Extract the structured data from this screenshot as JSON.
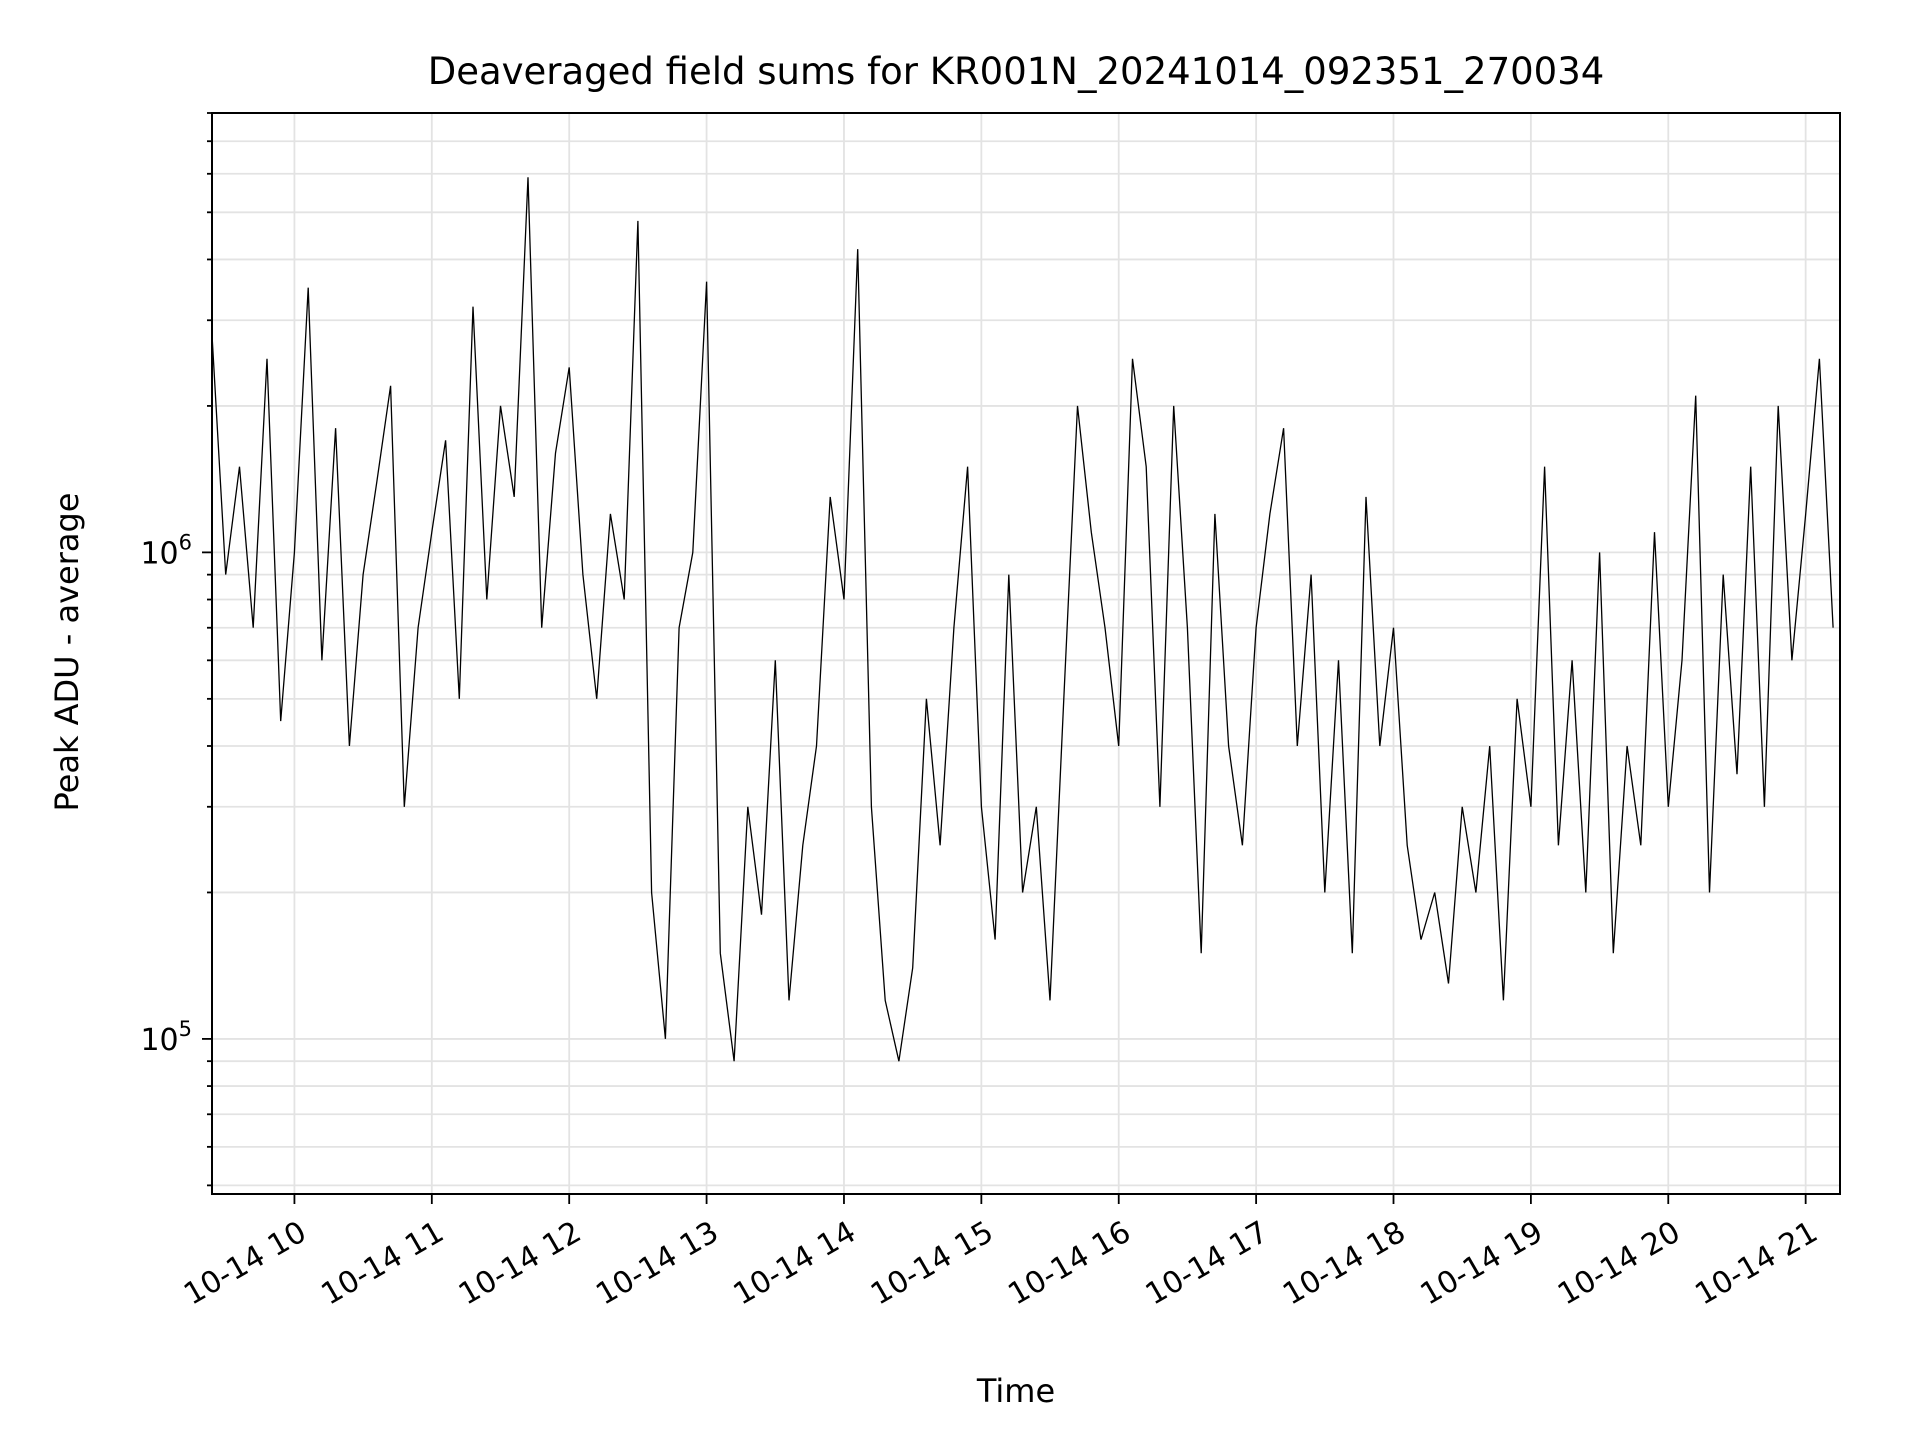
{
  "chart_data": {
    "type": "line",
    "title": "Deaveraged field sums for KR001N_20241014_092351_270034",
    "xlabel": "Time",
    "ylabel": "Peak ADU - average",
    "y_scale": "log",
    "ylim": [
      48000,
      8000000
    ],
    "xlim": [
      "2024-10-14 09:24",
      "2024-10-14 21:15"
    ],
    "grid": "on (major and minor)",
    "line_color": "#000000",
    "x_ticks": [
      {
        "value": "2024-10-14 10:00",
        "label": "10-14 10"
      },
      {
        "value": "2024-10-14 11:00",
        "label": "10-14 11"
      },
      {
        "value": "2024-10-14 12:00",
        "label": "10-14 12"
      },
      {
        "value": "2024-10-14 13:00",
        "label": "10-14 13"
      },
      {
        "value": "2024-10-14 14:00",
        "label": "10-14 14"
      },
      {
        "value": "2024-10-14 15:00",
        "label": "10-14 15"
      },
      {
        "value": "2024-10-14 16:00",
        "label": "10-14 16"
      },
      {
        "value": "2024-10-14 17:00",
        "label": "10-14 17"
      },
      {
        "value": "2024-10-14 18:00",
        "label": "10-14 18"
      },
      {
        "value": "2024-10-14 19:00",
        "label": "10-14 19"
      },
      {
        "value": "2024-10-14 20:00",
        "label": "10-14 20"
      },
      {
        "value": "2024-10-14 21:00",
        "label": "10-14 21"
      }
    ],
    "y_ticks": [
      {
        "value": 100000,
        "base": "10",
        "exp": "5"
      },
      {
        "value": 1000000,
        "base": "10",
        "exp": "6"
      }
    ],
    "series": [
      {
        "x": [
          "2024-10-14 09:24",
          "2024-10-14 09:30",
          "2024-10-14 09:36",
          "2024-10-14 09:42",
          "2024-10-14 09:48",
          "2024-10-14 09:54",
          "2024-10-14 10:00",
          "2024-10-14 10:06",
          "2024-10-14 10:12",
          "2024-10-14 10:18",
          "2024-10-14 10:24",
          "2024-10-14 10:30",
          "2024-10-14 10:36",
          "2024-10-14 10:42",
          "2024-10-14 10:48",
          "2024-10-14 10:54",
          "2024-10-14 11:00",
          "2024-10-14 11:06",
          "2024-10-14 11:12",
          "2024-10-14 11:18",
          "2024-10-14 11:24",
          "2024-10-14 11:30",
          "2024-10-14 11:36",
          "2024-10-14 11:42",
          "2024-10-14 11:48",
          "2024-10-14 11:54",
          "2024-10-14 12:00",
          "2024-10-14 12:06",
          "2024-10-14 12:12",
          "2024-10-14 12:18",
          "2024-10-14 12:24",
          "2024-10-14 12:30",
          "2024-10-14 12:36",
          "2024-10-14 12:42",
          "2024-10-14 12:48",
          "2024-10-14 12:54",
          "2024-10-14 13:00",
          "2024-10-14 13:06",
          "2024-10-14 13:12",
          "2024-10-14 13:18",
          "2024-10-14 13:24",
          "2024-10-14 13:30",
          "2024-10-14 13:36",
          "2024-10-14 13:42",
          "2024-10-14 13:48",
          "2024-10-14 13:54",
          "2024-10-14 14:00",
          "2024-10-14 14:06",
          "2024-10-14 14:12",
          "2024-10-14 14:18",
          "2024-10-14 14:24",
          "2024-10-14 14:30",
          "2024-10-14 14:36",
          "2024-10-14 14:42",
          "2024-10-14 14:48",
          "2024-10-14 14:54",
          "2024-10-14 15:00",
          "2024-10-14 15:06",
          "2024-10-14 15:12",
          "2024-10-14 15:18",
          "2024-10-14 15:24",
          "2024-10-14 15:30",
          "2024-10-14 15:36",
          "2024-10-14 15:42",
          "2024-10-14 15:48",
          "2024-10-14 15:54",
          "2024-10-14 16:00",
          "2024-10-14 16:06",
          "2024-10-14 16:12",
          "2024-10-14 16:18",
          "2024-10-14 16:24",
          "2024-10-14 16:30",
          "2024-10-14 16:36",
          "2024-10-14 16:42",
          "2024-10-14 16:48",
          "2024-10-14 16:54",
          "2024-10-14 17:00",
          "2024-10-14 17:06",
          "2024-10-14 17:12",
          "2024-10-14 17:18",
          "2024-10-14 17:24",
          "2024-10-14 17:30",
          "2024-10-14 17:36",
          "2024-10-14 17:42",
          "2024-10-14 17:48",
          "2024-10-14 17:54",
          "2024-10-14 18:00",
          "2024-10-14 18:06",
          "2024-10-14 18:12",
          "2024-10-14 18:18",
          "2024-10-14 18:24",
          "2024-10-14 18:30",
          "2024-10-14 18:36",
          "2024-10-14 18:42",
          "2024-10-14 18:48",
          "2024-10-14 18:54",
          "2024-10-14 19:00",
          "2024-10-14 19:06",
          "2024-10-14 19:12",
          "2024-10-14 19:18",
          "2024-10-14 19:24",
          "2024-10-14 19:30",
          "2024-10-14 19:36",
          "2024-10-14 19:42",
          "2024-10-14 19:48",
          "2024-10-14 19:54",
          "2024-10-14 20:00",
          "2024-10-14 20:06",
          "2024-10-14 20:12",
          "2024-10-14 20:18",
          "2024-10-14 20:24",
          "2024-10-14 20:30",
          "2024-10-14 20:36",
          "2024-10-14 20:42",
          "2024-10-14 20:48",
          "2024-10-14 20:54",
          "2024-10-14 21:00",
          "2024-10-14 21:06",
          "2024-10-14 21:12"
        ],
        "y": [
          2800000,
          900000,
          1500000,
          700000,
          2500000,
          450000,
          1000000,
          3500000,
          600000,
          1800000,
          400000,
          900000,
          1400000,
          2200000,
          300000,
          700000,
          1100000,
          1700000,
          500000,
          3200000,
          800000,
          2000000,
          1300000,
          5900000,
          700000,
          1600000,
          2400000,
          900000,
          500000,
          1200000,
          800000,
          4800000,
          200000,
          100000,
          700000,
          1000000,
          3600000,
          150000,
          90000,
          300000,
          180000,
          600000,
          120000,
          250000,
          400000,
          1300000,
          800000,
          4200000,
          300000,
          120000,
          90000,
          140000,
          500000,
          250000,
          700000,
          1500000,
          300000,
          160000,
          900000,
          200000,
          300000,
          120000,
          500000,
          2000000,
          1100000,
          700000,
          400000,
          2500000,
          1500000,
          300000,
          2000000,
          700000,
          150000,
          1200000,
          400000,
          250000,
          700000,
          1200000,
          1800000,
          400000,
          900000,
          200000,
          600000,
          150000,
          1300000,
          400000,
          700000,
          250000,
          160000,
          200000,
          130000,
          300000,
          200000,
          400000,
          120000,
          500000,
          300000,
          1500000,
          250000,
          600000,
          200000,
          1000000,
          150000,
          400000,
          250000,
          1100000,
          300000,
          600000,
          2100000,
          200000,
          900000,
          350000,
          1500000,
          300000,
          2000000,
          600000,
          1200000,
          2500000,
          700000
        ]
      }
    ]
  }
}
